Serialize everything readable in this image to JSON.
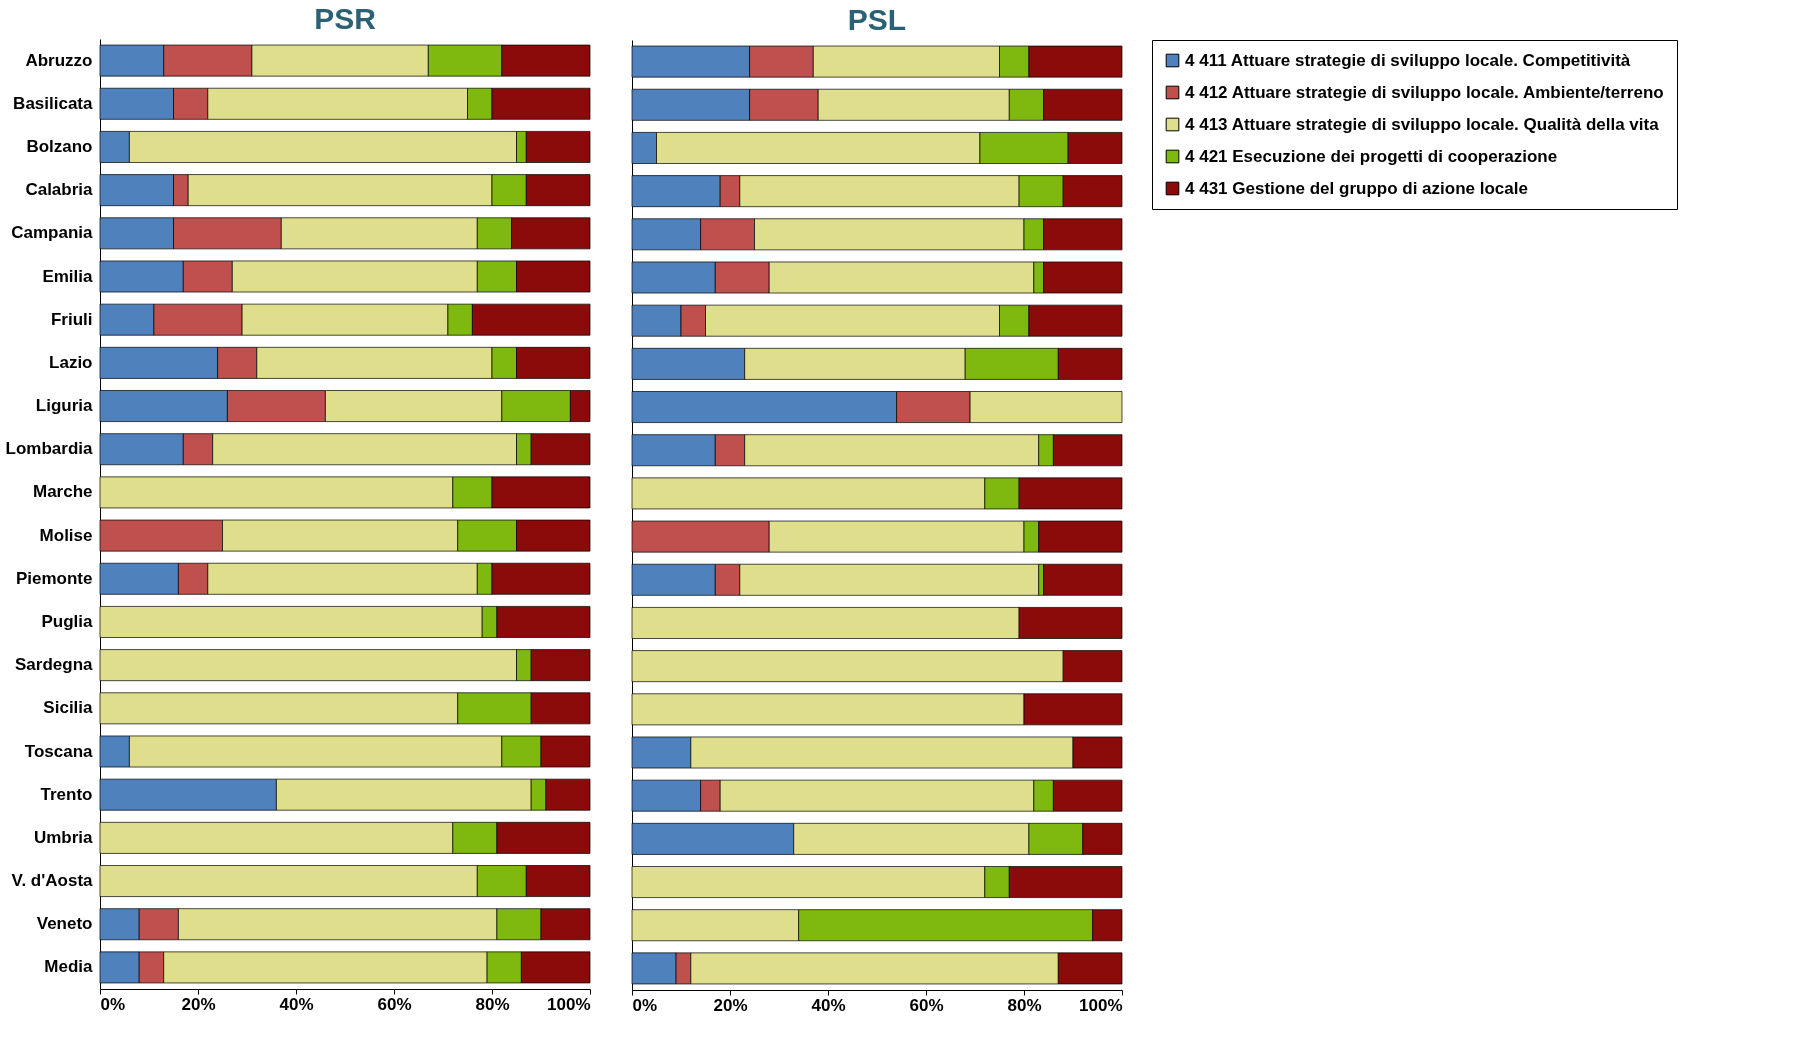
{
  "chart_data": [
    {
      "type": "bar",
      "title": "PSR",
      "orientation": "horizontal",
      "stacked": true,
      "legend": false,
      "categories": [
        "Abruzzo",
        "Basilicata",
        "Bolzano",
        "Calabria",
        "Campania",
        "Emilia",
        "Friuli",
        "Lazio",
        "Liguria",
        "Lombardia",
        "Marche",
        "Molise",
        "Piemonte",
        "Puglia",
        "Sardegna",
        "Sicilia",
        "Toscana",
        "Trento",
        "Umbria",
        "V. d'Aosta",
        "Veneto",
        "Media"
      ],
      "xlim": [
        0,
        100
      ],
      "xticks": [
        {
          "value": 0,
          "label": "0%"
        },
        {
          "value": 20,
          "label": "20%"
        },
        {
          "value": 40,
          "label": "40%"
        },
        {
          "value": 60,
          "label": "60%"
        },
        {
          "value": 80,
          "label": "80%"
        },
        {
          "value": 100,
          "label": "100%"
        }
      ],
      "series": [
        {
          "color": "#4f81bd",
          "values": [
            13,
            15,
            6,
            15,
            15,
            17,
            11,
            24,
            26,
            17,
            null,
            null,
            16,
            null,
            null,
            null,
            6,
            36,
            null,
            null,
            8,
            8
          ]
        },
        {
          "color": "#c0504d",
          "values": [
            18,
            7,
            null,
            3,
            22,
            10,
            18,
            8,
            20,
            6,
            null,
            25,
            6,
            null,
            null,
            null,
            null,
            null,
            null,
            null,
            8,
            5
          ]
        },
        {
          "color": "#dede8c",
          "values": [
            36,
            53,
            79,
            62,
            40,
            50,
            42,
            48,
            36,
            62,
            72,
            48,
            55,
            78,
            85,
            73,
            76,
            52,
            72,
            77,
            65,
            66
          ]
        },
        {
          "color": "#7fb80e",
          "values": [
            15,
            5,
            2,
            7,
            7,
            8,
            5,
            5,
            14,
            3,
            8,
            12,
            3,
            3,
            3,
            15,
            8,
            3,
            9,
            10,
            9,
            7
          ]
        },
        {
          "color": "#8b0a0a",
          "values": [
            18,
            20,
            13,
            13,
            16,
            15,
            24,
            15,
            4,
            12,
            20,
            15,
            20,
            19,
            12,
            12,
            10,
            9,
            19,
            13,
            10,
            14
          ]
        }
      ]
    },
    {
      "type": "bar",
      "title": "PSL",
      "orientation": "horizontal",
      "stacked": true,
      "legend": "right",
      "tick_labels": "x",
      "categories": [
        null,
        null,
        null,
        null,
        null,
        null,
        null,
        null,
        null,
        null,
        null,
        null,
        null,
        null,
        null,
        null,
        null,
        null,
        null,
        null,
        null,
        null
      ],
      "xlim": [
        0,
        100
      ],
      "xticks": [
        {
          "value": 0,
          "label": "0%"
        },
        {
          "value": 20,
          "label": "20%"
        },
        {
          "value": 40,
          "label": "40%"
        },
        {
          "value": 60,
          "label": "60%"
        },
        {
          "value": 80,
          "label": "80%"
        },
        {
          "value": 100,
          "label": "100%"
        }
      ],
      "series": [
        {
          "name": "4 411 Attuare strategie di sviluppo locale. Competitività",
          "color": "#4f81bd",
          "values": [
            24,
            24,
            5,
            18,
            14,
            17,
            10,
            23,
            54,
            17,
            null,
            null,
            17,
            null,
            null,
            null,
            12,
            14,
            33,
            null,
            null,
            9
          ]
        },
        {
          "name": "4 412 Attuare strategie di sviluppo locale. Ambiente/terreno",
          "color": "#c0504d",
          "values": [
            13,
            14,
            null,
            4,
            11,
            11,
            5,
            null,
            15,
            6,
            null,
            28,
            5,
            null,
            null,
            null,
            null,
            4,
            null,
            null,
            null,
            3
          ]
        },
        {
          "name": "4 413 Attuare strategie di sviluppo locale. Qualità della vita",
          "color": "#dede8c",
          "values": [
            38,
            39,
            66,
            57,
            55,
            54,
            60,
            45,
            31,
            60,
            72,
            52,
            61,
            79,
            88,
            80,
            78,
            64,
            48,
            72,
            34,
            75
          ]
        },
        {
          "name": "4 421 Esecuzione dei progetti di cooperazione",
          "color": "#7fb80e",
          "values": [
            6,
            7,
            18,
            9,
            4,
            2,
            6,
            19,
            null,
            3,
            7,
            3,
            1,
            null,
            null,
            null,
            null,
            4,
            11,
            5,
            60,
            null
          ]
        },
        {
          "name": "4 431 Gestione del gruppo di azione locale",
          "color": "#8b0a0a",
          "values": [
            19,
            16,
            11,
            12,
            16,
            16,
            19,
            13,
            null,
            14,
            21,
            17,
            16,
            21,
            12,
            20,
            10,
            14,
            8,
            23,
            6,
            13
          ]
        }
      ]
    }
  ]
}
